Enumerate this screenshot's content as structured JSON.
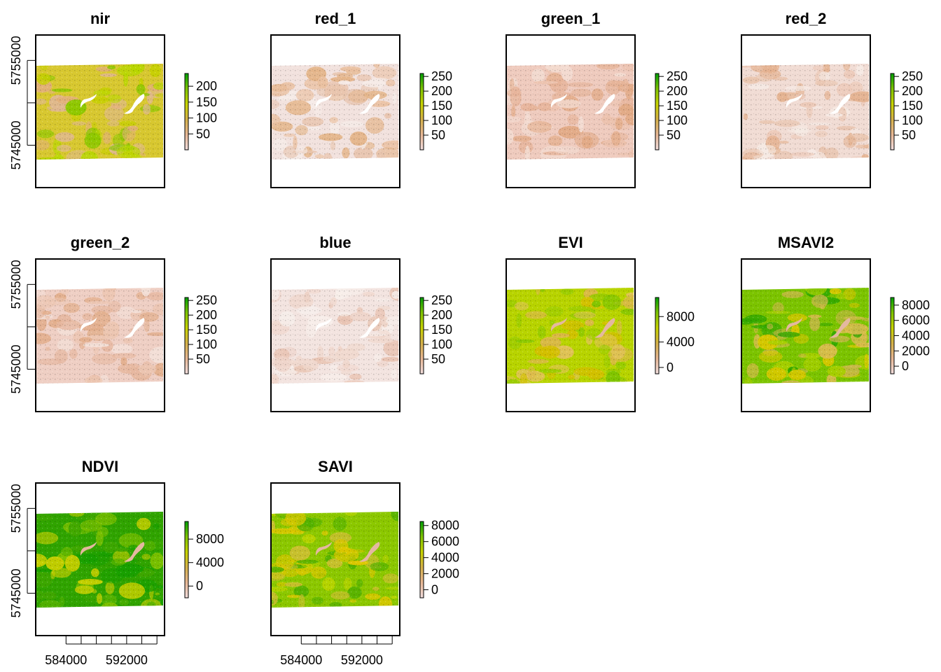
{
  "chart_data": {
    "type": "heatmap",
    "layout": "grid-4-columns",
    "x_axis": {
      "range": [
        580000,
        597000
      ],
      "tick_values": [
        584000,
        588000,
        592000,
        596000
      ],
      "tick_labels": [
        "584000",
        "592000"
      ],
      "labeled_tick_values": [
        584000,
        592000
      ]
    },
    "y_axis": {
      "range": [
        5740000,
        5758000
      ],
      "tick_values": [
        5745000,
        5750000,
        5755000
      ],
      "tick_labels": [
        "5745000",
        "5755000"
      ],
      "labeled_tick_values": [
        5745000,
        5755000
      ]
    },
    "legend_colors": [
      "#f2dede",
      "#e8b896",
      "#d6b24a",
      "#c8d400",
      "#7fc400",
      "#00a000"
    ],
    "panels": [
      {
        "title": "nir",
        "legend": {
          "min": 0,
          "max": 240,
          "ticks": [
            "50",
            "100",
            "150",
            "200"
          ],
          "tick_values": [
            50,
            100,
            150,
            200
          ]
        }
      },
      {
        "title": "red_1",
        "legend": {
          "min": 0,
          "max": 260,
          "ticks": [
            "50",
            "100",
            "150",
            "200",
            "250"
          ],
          "tick_values": [
            50,
            100,
            150,
            200,
            250
          ]
        }
      },
      {
        "title": "green_1",
        "legend": {
          "min": 0,
          "max": 260,
          "ticks": [
            "50",
            "100",
            "150",
            "200",
            "250"
          ],
          "tick_values": [
            50,
            100,
            150,
            200,
            250
          ]
        }
      },
      {
        "title": "red_2",
        "legend": {
          "min": 0,
          "max": 260,
          "ticks": [
            "50",
            "100",
            "150",
            "200",
            "250"
          ],
          "tick_values": [
            50,
            100,
            150,
            200,
            250
          ]
        }
      },
      {
        "title": "green_2",
        "legend": {
          "min": 0,
          "max": 260,
          "ticks": [
            "50",
            "100",
            "150",
            "200",
            "250"
          ],
          "tick_values": [
            50,
            100,
            150,
            200,
            250
          ]
        }
      },
      {
        "title": "blue",
        "legend": {
          "min": 0,
          "max": 260,
          "ticks": [
            "50",
            "100",
            "150",
            "200",
            "250"
          ],
          "tick_values": [
            50,
            100,
            150,
            200,
            250
          ]
        }
      },
      {
        "title": "EVI",
        "legend": {
          "min": -1000,
          "max": 11000,
          "ticks": [
            "0",
            "4000",
            "8000"
          ],
          "tick_values": [
            0,
            4000,
            8000
          ]
        }
      },
      {
        "title": "MSAVI2",
        "legend": {
          "min": -1000,
          "max": 9000,
          "ticks": [
            "0",
            "2000",
            "4000",
            "6000",
            "8000"
          ],
          "tick_values": [
            0,
            2000,
            4000,
            6000,
            8000
          ]
        }
      },
      {
        "title": "NDVI",
        "legend": {
          "min": -2000,
          "max": 11000,
          "ticks": [
            "0",
            "4000",
            "8000"
          ],
          "tick_values": [
            0,
            4000,
            8000
          ]
        }
      },
      {
        "title": "SAVI",
        "legend": {
          "min": -1000,
          "max": 8500,
          "ticks": [
            "0",
            "2000",
            "4000",
            "6000",
            "8000"
          ],
          "tick_values": [
            0,
            2000,
            4000,
            6000,
            8000
          ]
        }
      }
    ]
  }
}
